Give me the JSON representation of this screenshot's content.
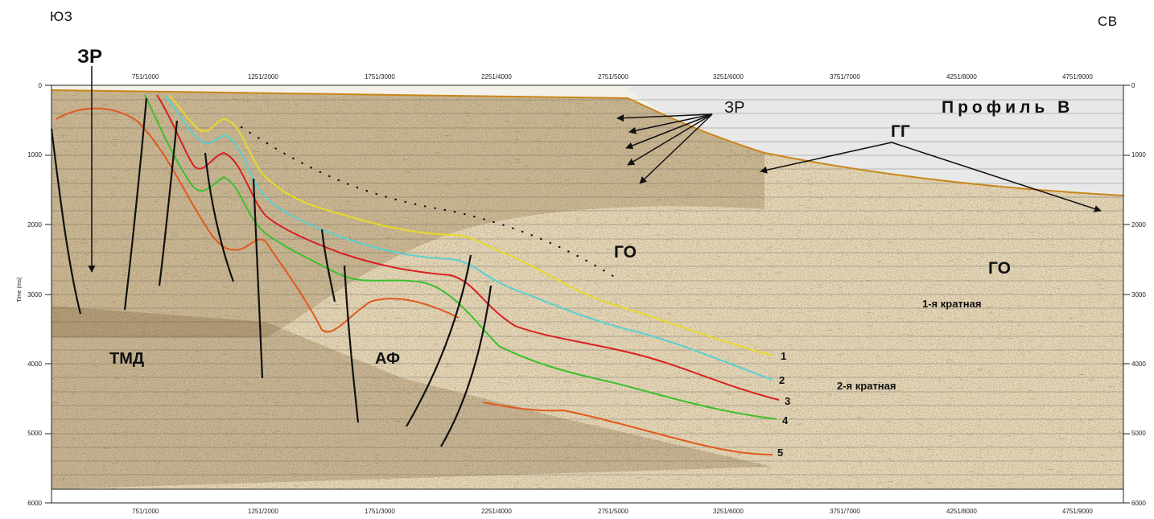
{
  "corners": {
    "left": "ЮЗ",
    "right": "СВ"
  },
  "axis": {
    "y_title": "Time (ms)",
    "top_ticks": [
      "751/1000",
      "1251/2000",
      "1751/3000",
      "2251/4000",
      "2751/5000",
      "3251/6000",
      "3751/7000",
      "4251/8000",
      "4751/9000"
    ],
    "bottom_ticks": [
      "751/1000",
      "1251/2000",
      "1751/3000",
      "2251/4000",
      "2751/5000",
      "3251/6000",
      "3751/7000",
      "4251/8000",
      "4751/9000"
    ],
    "time_ticks": [
      "0",
      "1000",
      "2000",
      "3000",
      "4000",
      "5000",
      "6000"
    ]
  },
  "labels": {
    "zr_top": "ЗР",
    "zr_mid": "ЗР",
    "profile": "Профиль В",
    "gg": "ГГ",
    "go_center": "ГО",
    "go_right": "ГО",
    "multiple_1": "1-я кратная",
    "multiple_2": "2-я кратная",
    "tmd": "ТМД",
    "af": "АФ"
  },
  "horizons": [
    {
      "number": "1",
      "color": "#e8d92a"
    },
    {
      "number": "2",
      "color": "#5ad0d0"
    },
    {
      "number": "3",
      "color": "#d92020"
    },
    {
      "number": "4",
      "color": "#3cc02c"
    },
    {
      "number": "5",
      "color": "#e05a1e"
    }
  ]
}
